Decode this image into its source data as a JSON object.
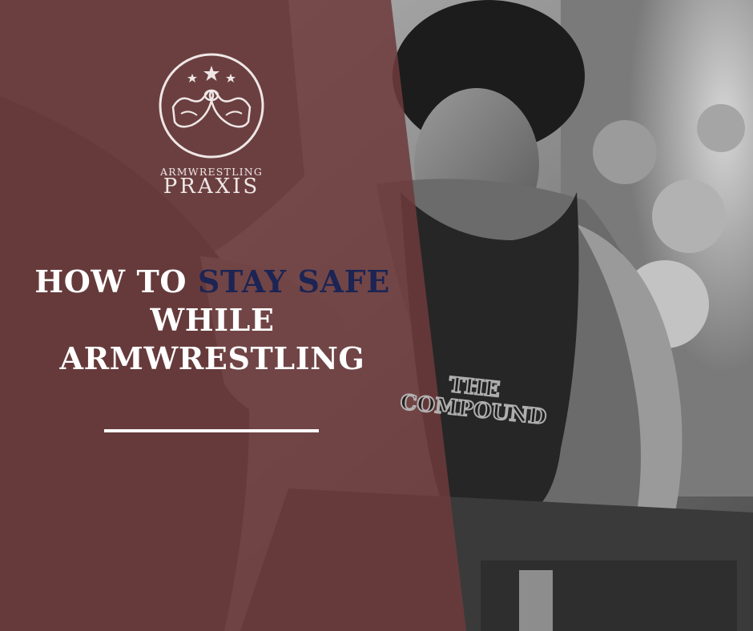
{
  "brand": {
    "small": "ARMWRESTLING",
    "large": "PRAXIS"
  },
  "headline": {
    "line1_prefix": "HOW TO ",
    "line1_accent": "STAY SAFE",
    "line2": "WHILE",
    "line3": "ARMWRESTLING"
  },
  "photo": {
    "shirt_line1": "THE",
    "shirt_line2": "COMPOUND"
  },
  "colors": {
    "overlay": "#6e3a3b",
    "accent_text": "#1c2454",
    "text": "#ffffff"
  }
}
